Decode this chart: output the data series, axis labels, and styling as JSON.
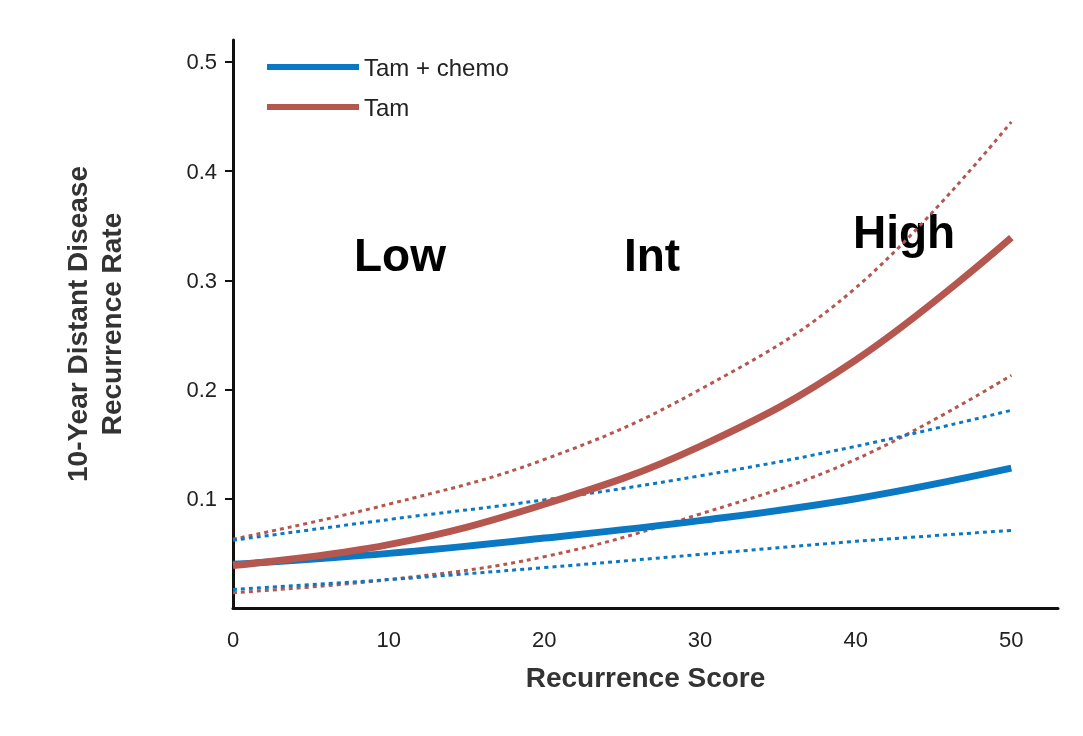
{
  "chart_data": {
    "type": "line",
    "xlabel": "Recurrence Score",
    "ylabel": "10-Year Distant Disease\nRecurrence Rate",
    "xlim": [
      0,
      53
    ],
    "xticks": [
      0,
      10,
      20,
      30,
      40,
      50
    ],
    "ylim": [
      0,
      0.52
    ],
    "yticks": [
      0.1,
      0.2,
      0.3,
      0.4,
      0.5
    ],
    "x": [
      0,
      10,
      20,
      30,
      40,
      50
    ],
    "grid": false,
    "legend": "top left",
    "marker": "none",
    "series": [
      {
        "name": "Tam + chemo",
        "color": "#0a78c2",
        "values": [
          0.04,
          0.05,
          0.064,
          0.08,
          0.1,
          0.128
        ],
        "line_style": "solid"
      },
      {
        "name": "Tam",
        "color": "#b5574f",
        "values": [
          0.039,
          0.058,
          0.095,
          0.148,
          0.227,
          0.339
        ],
        "line_style": "solid"
      },
      {
        "color": "#b5574f",
        "values": [
          0.063,
          0.095,
          0.136,
          0.2,
          0.293,
          0.445
        ],
        "line_style": "dashed"
      },
      {
        "color": "#b5574f",
        "values": [
          0.014,
          0.026,
          0.047,
          0.086,
          0.136,
          0.213
        ],
        "line_style": "dashed"
      },
      {
        "color": "#0a78c2",
        "values": [
          0.062,
          0.081,
          0.099,
          0.121,
          0.148,
          0.181
        ],
        "line_style": "dashed"
      },
      {
        "color": "#0a78c2",
        "values": [
          0.017,
          0.026,
          0.037,
          0.049,
          0.061,
          0.071
        ],
        "line_style": "dashed"
      }
    ],
    "annotations": [
      "Low",
      "Int",
      "High"
    ]
  }
}
